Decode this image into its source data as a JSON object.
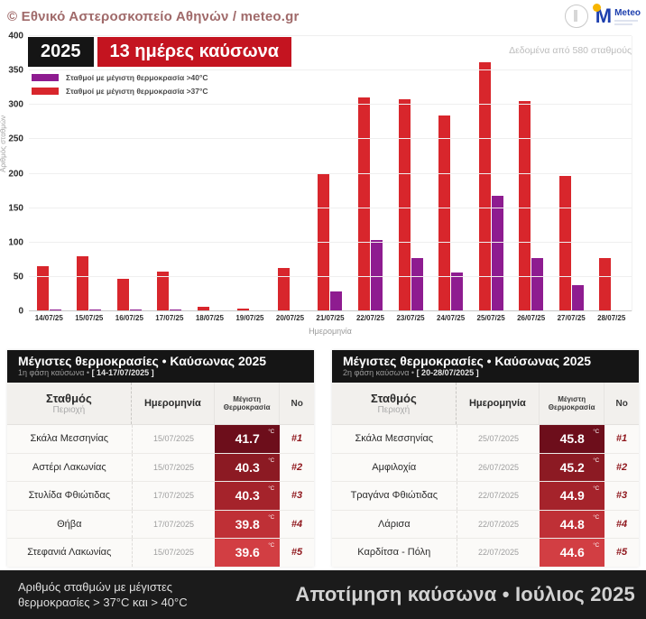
{
  "header": {
    "copyright": "© Εθνικό Αστεροσκοπείο Αθηνών / meteo.gr",
    "logo_meteo_text": "Meteo"
  },
  "chart": {
    "year_badge": "2025",
    "title_badge": "13 ημέρες καύσωνα",
    "source_note": "Δεδομένα από 580 σταθμούς",
    "xlabel": "Ημερομηνία",
    "ylabel": "Αριθμός σταθμών",
    "legend": [
      {
        "label": "Σταθμοί με μέγιστη θερμοκρασία >40°C",
        "color": "#8e1c90"
      },
      {
        "label": "Σταθμοί με μέγιστη θερμοκρασία >37°C",
        "color": "#d8262c"
      }
    ]
  },
  "chart_data": {
    "type": "bar",
    "title": "2025 • 13 ημέρες καύσωνα",
    "xlabel": "Ημερομηνία",
    "ylabel": "Αριθμός σταθμών",
    "ylim": [
      0,
      400
    ],
    "ytick_step": 50,
    "grid": true,
    "legend_position": "top-left",
    "categories": [
      "14/07/25",
      "15/07/25",
      "16/07/25",
      "17/07/25",
      "18/07/25",
      "19/07/25",
      "20/07/25",
      "21/07/25",
      "22/07/25",
      "23/07/25",
      "24/07/25",
      "25/07/25",
      "26/07/25",
      "27/07/25",
      "28/07/25"
    ],
    "series": [
      {
        "name": "Σταθμοί με μέγιστη θερμοκρασία >40°C",
        "color": "#8e1c90",
        "values": [
          2,
          3,
          2,
          3,
          1,
          1,
          1,
          29,
          103,
          78,
          57,
          168,
          78,
          38,
          1
        ]
      },
      {
        "name": "Σταθμοί με μέγιστη θερμοκρασία >37°C",
        "color": "#d8262c",
        "values": [
          65,
          80,
          47,
          58,
          6,
          4,
          63,
          201,
          311,
          308,
          285,
          362,
          305,
          197,
          78
        ]
      }
    ]
  },
  "tables": [
    {
      "title": "Μέγιστες θερμοκρασίες • Καύσωνας 2025",
      "subtitle_prefix": "1η φάση καύσωνα • ",
      "subtitle_range": "[ 14-17/07/2025 ]",
      "columns": {
        "station": "Σταθμός",
        "station_sub": "Περιοχή",
        "date": "Ημερομηνία",
        "temp_line1": "Μέγιστη",
        "temp_line2": "Θερμοκρασία",
        "rank": "No"
      },
      "rows": [
        {
          "station": "Σκάλα Μεσσηνίας",
          "date": "15/07/2025",
          "temp": "41.7",
          "unit": "°C",
          "rank": "#1",
          "cell_color": "#6d0e1b"
        },
        {
          "station": "Αστέρι Λακωνίας",
          "date": "15/07/2025",
          "temp": "40.3",
          "unit": "°C",
          "rank": "#2",
          "cell_color": "#8c1a23"
        },
        {
          "station": "Στυλίδα Φθιώτιδας",
          "date": "17/07/2025",
          "temp": "40.3",
          "unit": "°C",
          "rank": "#3",
          "cell_color": "#a5232b"
        },
        {
          "station": "Θήβα",
          "date": "17/07/2025",
          "temp": "39.8",
          "unit": "°C",
          "rank": "#4",
          "cell_color": "#bf3036"
        },
        {
          "station": "Στεφανιά Λακωνίας",
          "date": "15/07/2025",
          "temp": "39.6",
          "unit": "°C",
          "rank": "#5",
          "cell_color": "#d23e43"
        }
      ]
    },
    {
      "title": "Μέγιστες θερμοκρασίες • Καύσωνας 2025",
      "subtitle_prefix": "2η φάση καύσωνα • ",
      "subtitle_range": "[ 20-28/07/2025 ]",
      "columns": {
        "station": "Σταθμός",
        "station_sub": "Περιοχή",
        "date": "Ημερομηνία",
        "temp_line1": "Μέγιστη",
        "temp_line2": "Θερμοκρασία",
        "rank": "No"
      },
      "rows": [
        {
          "station": "Σκάλα Μεσσηνίας",
          "date": "25/07/2025",
          "temp": "45.8",
          "unit": "°C",
          "rank": "#1",
          "cell_color": "#6d0e1b"
        },
        {
          "station": "Αμφιλοχία",
          "date": "26/07/2025",
          "temp": "45.2",
          "unit": "°C",
          "rank": "#2",
          "cell_color": "#8c1a23"
        },
        {
          "station": "Τραγάνα Φθιώτιδας",
          "date": "22/07/2025",
          "temp": "44.9",
          "unit": "°C",
          "rank": "#3",
          "cell_color": "#a5232b"
        },
        {
          "station": "Λάρισα",
          "date": "22/07/2025",
          "temp": "44.8",
          "unit": "°C",
          "rank": "#4",
          "cell_color": "#bf3036"
        },
        {
          "station": "Καρδίτσα - Πόλη",
          "date": "22/07/2025",
          "temp": "44.6",
          "unit": "°C",
          "rank": "#5",
          "cell_color": "#d23e43"
        }
      ]
    }
  ],
  "footer": {
    "left_line1": "Αριθμός σταθμών με μέγιστες",
    "left_line2": "θερμοκρασίες > 37°C και > 40°C",
    "right": "Αποτίμηση καύσωνα • Ιούλιος 2025"
  }
}
